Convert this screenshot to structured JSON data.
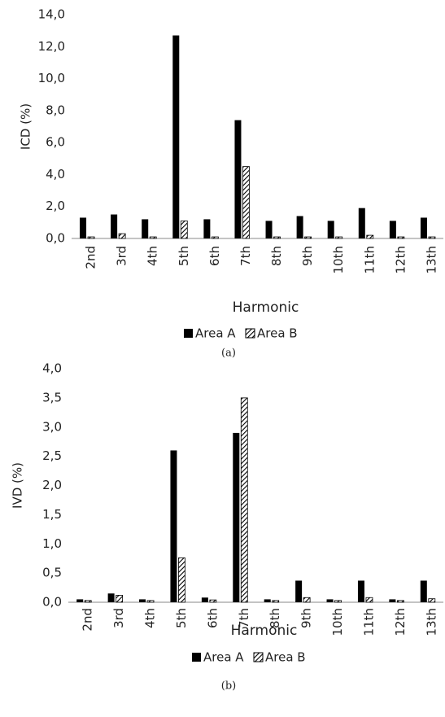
{
  "chart_data": [
    {
      "type": "bar",
      "y_label": "ICD (%)",
      "x_label": "Harmonic",
      "caption": "(a)",
      "categories": [
        "2nd",
        "3rd",
        "4th",
        "5th",
        "6th",
        "7th",
        "8th",
        "9th",
        "10th",
        "11th",
        "12th",
        "13th"
      ],
      "series": [
        {
          "name": "Area A",
          "color": "#000000",
          "values": [
            1.3,
            1.5,
            1.2,
            12.7,
            1.2,
            7.4,
            1.1,
            1.4,
            1.1,
            1.9,
            1.1,
            1.3
          ]
        },
        {
          "name": "Area B",
          "color": "#000000",
          "pattern": "hatch",
          "values": [
            0.1,
            0.3,
            0.1,
            1.1,
            0.1,
            4.5,
            0.1,
            0.1,
            0.1,
            0.2,
            0.1,
            0.1
          ]
        }
      ],
      "ylim": [
        0,
        14
      ],
      "yticks": [
        {
          "value": 0,
          "label": "0,0"
        },
        {
          "value": 2,
          "label": "2,0"
        },
        {
          "value": 4,
          "label": "4,0"
        },
        {
          "value": 6,
          "label": "6,0"
        },
        {
          "value": 8,
          "label": "8,0"
        },
        {
          "value": 10,
          "label": "10,0"
        },
        {
          "value": 12,
          "label": "12,0"
        },
        {
          "value": 14,
          "label": "14,0"
        }
      ],
      "legend": "bottom"
    },
    {
      "type": "bar",
      "y_label": "IVD (%)",
      "x_label": "Harmonic",
      "caption": "(b)",
      "categories": [
        "2nd",
        "3rd",
        "4th",
        "5th",
        "6th",
        "7th",
        "8th",
        "9th",
        "10th",
        "11th",
        "12th",
        "13th"
      ],
      "series": [
        {
          "name": "Area A",
          "color": "#000000",
          "values": [
            0.05,
            0.15,
            0.05,
            2.6,
            0.08,
            2.9,
            0.05,
            0.37,
            0.05,
            0.37,
            0.05,
            0.37
          ]
        },
        {
          "name": "Area B",
          "color": "#000000",
          "pattern": "hatch",
          "values": [
            0.03,
            0.12,
            0.03,
            0.76,
            0.04,
            3.5,
            0.03,
            0.08,
            0.03,
            0.08,
            0.03,
            0.06
          ]
        }
      ],
      "ylim": [
        0,
        4
      ],
      "yticks": [
        {
          "value": 0,
          "label": "0,0"
        },
        {
          "value": 0.5,
          "label": "0,5"
        },
        {
          "value": 1,
          "label": "1,0"
        },
        {
          "value": 1.5,
          "label": "1,5"
        },
        {
          "value": 2,
          "label": "2,0"
        },
        {
          "value": 2.5,
          "label": "2,5"
        },
        {
          "value": 3,
          "label": "3,0"
        },
        {
          "value": 3.5,
          "label": "3,5"
        },
        {
          "value": 4,
          "label": "4,0"
        }
      ],
      "legend": "bottom"
    }
  ]
}
